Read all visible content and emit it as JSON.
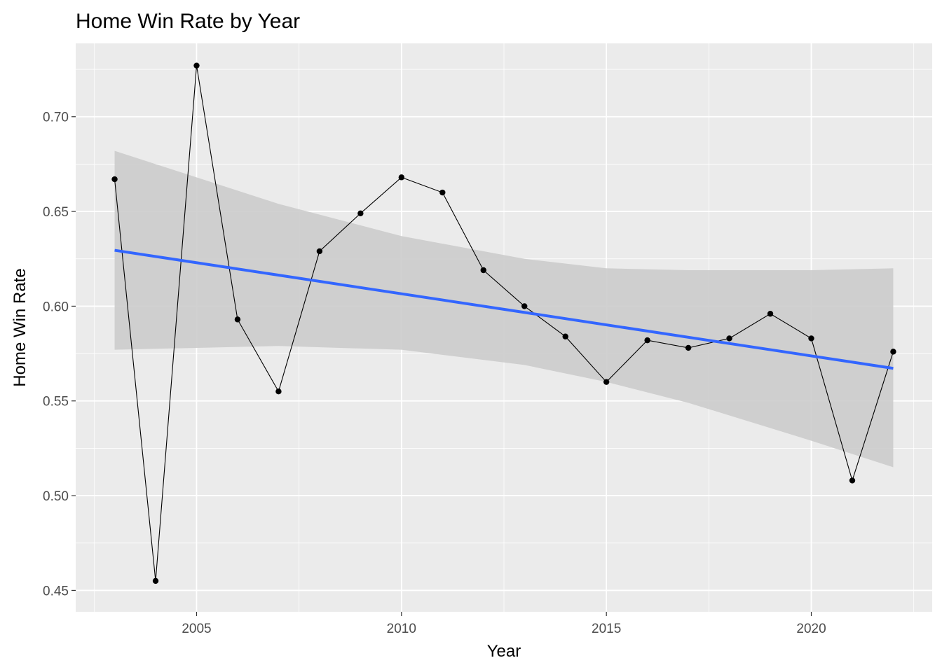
{
  "chart_data": {
    "type": "line",
    "title": "Home Win Rate by Year",
    "xlabel": "Year",
    "ylabel": "Home Win Rate",
    "xlim": [
      2002.05,
      2022.95
    ],
    "ylim": [
      0.4387,
      0.7387
    ],
    "x_ticks": [
      2005,
      2010,
      2015,
      2020
    ],
    "x_tick_labels": [
      "2005",
      "2010",
      "2015",
      "2020"
    ],
    "x_minor_ticks": [
      2002.5,
      2007.5,
      2012.5,
      2017.5,
      2022.5
    ],
    "y_ticks": [
      0.45,
      0.5,
      0.55,
      0.6,
      0.65,
      0.7
    ],
    "y_tick_labels": [
      "0.45",
      "0.50",
      "0.55",
      "0.60",
      "0.65",
      "0.70"
    ],
    "y_minor_ticks": [
      0.475,
      0.525,
      0.575,
      0.625,
      0.675,
      0.725
    ],
    "grid": true,
    "legend": "none",
    "series": [
      {
        "x": [
          2003,
          2004,
          2005,
          2006,
          2007,
          2008,
          2009,
          2010,
          2011,
          2012,
          2013,
          2014,
          2015,
          2016,
          2017,
          2018,
          2019,
          2020,
          2021,
          2022
        ],
        "values": [
          0.667,
          0.455,
          0.727,
          0.593,
          0.555,
          0.629,
          0.649,
          0.668,
          0.66,
          0.619,
          0.6,
          0.584,
          0.56,
          0.582,
          0.578,
          0.583,
          0.596,
          0.583,
          0.508,
          0.576
        ],
        "color": "#000000"
      }
    ],
    "trend": {
      "method": "linear",
      "x": [
        2003,
        2022
      ],
      "values": [
        0.6295,
        0.5672
      ],
      "color": "#3366ff"
    },
    "confidence_band": {
      "x": [
        2003,
        2005,
        2007,
        2010,
        2013,
        2015,
        2017,
        2020,
        2022
      ],
      "lower": [
        0.577,
        0.578,
        0.579,
        0.577,
        0.569,
        0.56,
        0.549,
        0.529,
        0.515
      ],
      "upper": [
        0.682,
        0.668,
        0.654,
        0.637,
        0.625,
        0.62,
        0.619,
        0.619,
        0.62
      ],
      "color": "#cccccc"
    },
    "panel_background": "#ebebeb",
    "grid_color": "#ffffff"
  }
}
